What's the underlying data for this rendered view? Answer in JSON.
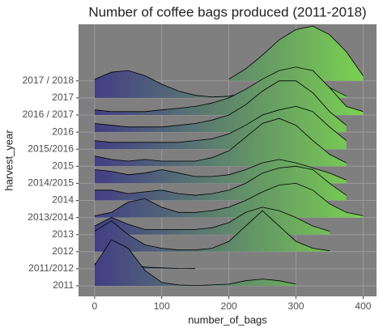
{
  "chart_data": {
    "type": "ridgeline",
    "title": "Number of coffee bags produced  (2011-2018)",
    "x_label": "number_of_bags",
    "y_label": "harvest_year",
    "xlim": [
      -24,
      420
    ],
    "xticks": [
      0,
      100,
      200,
      300,
      400
    ],
    "grid": true,
    "background": "#7f7f7f",
    "gradient": [
      "#433e85",
      "#7ad151"
    ],
    "line_color": "#000000",
    "x": [
      0,
      25,
      50,
      75,
      100,
      125,
      150,
      175,
      200,
      225,
      250,
      275,
      300,
      325,
      350,
      375,
      400
    ],
    "categories": [
      "2011",
      "2011/2012",
      "2012",
      "2013",
      "2013/2014",
      "2014",
      "2014/2015",
      "2015",
      "2015/2016",
      "2016",
      "2016 / 2017",
      "2017",
      "2017 / 2018"
    ],
    "densities": [
      [
        1.2,
        2.7,
        2.2,
        0.9,
        0.2,
        0.05,
        0.02,
        0.05,
        0.1,
        0.3,
        0.4,
        0.3,
        0.1,
        null,
        null,
        null,
        null
      ],
      [
        0.3,
        0.5,
        0.3,
        0.1,
        0.05,
        0.02,
        0.01,
        null,
        null,
        null,
        null,
        null,
        null,
        null,
        null,
        null,
        null
      ],
      [
        1.2,
        1.8,
        1.0,
        0.4,
        0.2,
        0.1,
        0.1,
        0.2,
        0.6,
        1.5,
        2.4,
        1.5,
        0.6,
        0.2,
        0.05,
        null,
        null
      ],
      [
        0.5,
        1.0,
        0.6,
        0.3,
        0.3,
        0.3,
        0.3,
        0.4,
        0.7,
        1.3,
        1.6,
        1.4,
        1.0,
        0.5,
        0.2,
        null,
        null
      ],
      [
        0.1,
        0.3,
        0.9,
        1.1,
        0.6,
        0.3,
        0.3,
        0.4,
        0.6,
        1.0,
        1.5,
        1.9,
        2.0,
        1.6,
        0.8,
        0.3,
        0.1
      ],
      [
        0.6,
        0.6,
        0.4,
        0.5,
        0.6,
        0.4,
        0.3,
        0.4,
        0.6,
        1.0,
        1.6,
        1.9,
        2.0,
        1.8,
        1.0,
        0.3,
        null
      ],
      [
        0.8,
        0.7,
        0.5,
        0.6,
        0.8,
        0.6,
        0.4,
        0.4,
        0.5,
        0.8,
        1.2,
        1.4,
        1.2,
        0.9,
        0.6,
        0.2,
        null
      ],
      [
        0.6,
        0.4,
        0.3,
        0.4,
        0.3,
        0.3,
        0.3,
        0.5,
        0.9,
        1.7,
        2.5,
        2.8,
        2.4,
        1.5,
        0.7,
        0.2,
        null
      ],
      [
        0.5,
        0.4,
        0.4,
        0.4,
        0.4,
        0.4,
        0.5,
        0.6,
        0.9,
        1.4,
        2.0,
        2.3,
        2.5,
        2.2,
        1.3,
        0.5,
        null
      ],
      [
        0.5,
        0.4,
        0.3,
        0.3,
        0.3,
        0.4,
        0.5,
        0.7,
        1.0,
        1.6,
        2.4,
        3.0,
        3.0,
        2.3,
        1.2,
        0.4,
        null
      ],
      [
        0.3,
        0.2,
        0.2,
        0.2,
        0.3,
        0.4,
        0.5,
        0.7,
        1.0,
        1.5,
        2.1,
        2.6,
        2.8,
        2.6,
        1.6,
        0.5,
        0.2
      ],
      [
        1.1,
        1.5,
        1.6,
        1.3,
        0.8,
        0.4,
        0.15,
        0.05,
        0.1,
        0.3,
        0.8,
        1.4,
        1.7,
        1.3,
        0.6,
        0.1,
        null
      ],
      [
        null,
        null,
        null,
        null,
        null,
        null,
        null,
        null,
        0.1,
        0.7,
        1.5,
        2.4,
        3.0,
        3.2,
        2.7,
        1.7,
        0.3
      ]
    ]
  }
}
